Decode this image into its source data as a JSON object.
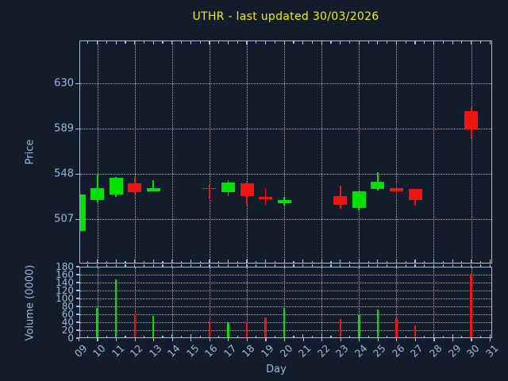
{
  "title": "UTHR - last updated 30/03/2026",
  "colors": {
    "background": "#121c2b",
    "axis": "#a4c0de",
    "tick_label": "#9db9d6",
    "grid": "#c4c9cf",
    "up": "#00e100",
    "down": "#f01515",
    "title": "#f2ee00"
  },
  "chart_data": {
    "type": "candlestick",
    "title": "UTHR - last updated 30/03/2026",
    "xlabel": "Day",
    "legend": "none",
    "grid": "dotted, horizontal at price/volume ticks, vertical every 2 days",
    "panels": [
      {
        "name": "price",
        "ylabel": "Price",
        "yticks": [
          507,
          548,
          589,
          630
        ],
        "ylim": [
          467,
          669
        ]
      },
      {
        "name": "volume",
        "ylabel": "Volume (0000)",
        "yticks": [
          0,
          20,
          40,
          60,
          80,
          100,
          120,
          140,
          160,
          180
        ],
        "ylim": [
          0,
          180
        ]
      }
    ],
    "x": {
      "lim": [
        9,
        31
      ],
      "labels": [
        "09",
        "10",
        "11",
        "12",
        "13",
        "14",
        "15",
        "16",
        "17",
        "18",
        "19",
        "20",
        "21",
        "22",
        "23",
        "24",
        "25",
        "26",
        "27",
        "28",
        "29",
        "30",
        "31"
      ],
      "grid_days": [
        10,
        12,
        14,
        16,
        18,
        20,
        22,
        24,
        26,
        28,
        30
      ]
    },
    "ohlcv": [
      {
        "day": 9,
        "open": 496,
        "high": 529,
        "low": 495,
        "close": 529,
        "volume": 0
      },
      {
        "day": 10,
        "open": 524,
        "high": 547,
        "low": 522,
        "close": 535,
        "volume": 76
      },
      {
        "day": 11,
        "open": 529,
        "high": 545,
        "low": 527,
        "close": 544,
        "volume": 148
      },
      {
        "day": 12,
        "open": 539,
        "high": 545,
        "low": 530,
        "close": 531,
        "volume": 60
      },
      {
        "day": 13,
        "open": 532,
        "high": 542,
        "low": 532,
        "close": 535,
        "volume": 55
      },
      {
        "day": 16,
        "open": 535,
        "high": 538,
        "low": 525,
        "close": 534,
        "volume": 43
      },
      {
        "day": 17,
        "open": 531,
        "high": 542,
        "low": 528,
        "close": 540,
        "volume": 37
      },
      {
        "day": 18,
        "open": 539,
        "high": 541,
        "low": 520,
        "close": 528,
        "volume": 39
      },
      {
        "day": 19,
        "open": 527,
        "high": 534,
        "low": 520,
        "close": 525,
        "volume": 51
      },
      {
        "day": 20,
        "open": 521,
        "high": 527,
        "low": 519,
        "close": 524,
        "volume": 76
      },
      {
        "day": 23,
        "open": 528,
        "high": 537,
        "low": 516,
        "close": 520,
        "volume": 48
      },
      {
        "day": 24,
        "open": 517,
        "high": 532,
        "low": 515,
        "close": 532,
        "volume": 58
      },
      {
        "day": 25,
        "open": 534,
        "high": 549,
        "low": 533,
        "close": 541,
        "volume": 71
      },
      {
        "day": 26,
        "open": 535,
        "high": 541,
        "low": 524,
        "close": 532,
        "volume": 50
      },
      {
        "day": 27,
        "open": 534,
        "high": 534,
        "low": 519,
        "close": 524,
        "volume": 32
      },
      {
        "day": 30,
        "open": 605,
        "high": 608,
        "low": 580,
        "close": 588,
        "volume": 162
      }
    ]
  }
}
